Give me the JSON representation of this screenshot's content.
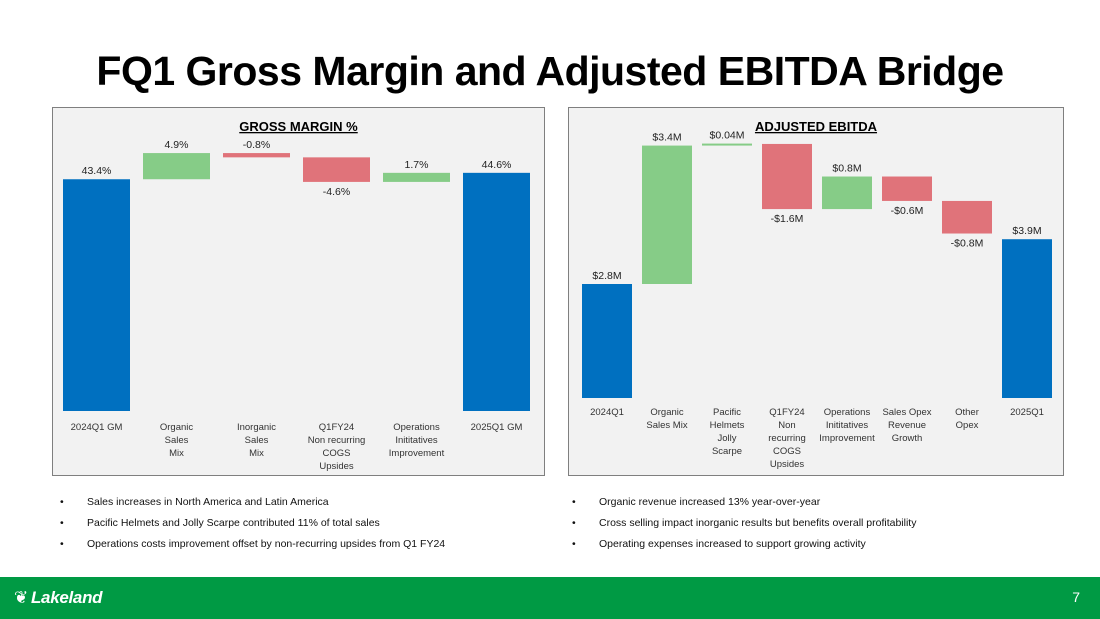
{
  "page_title": "FQ1 Gross Margin and Adjusted EBITDA Bridge",
  "colors": {
    "increase": "#86cc87",
    "decrease": "#e0737a",
    "total": "#0070c0",
    "footer": "#009a44"
  },
  "chart_data": [
    {
      "type": "bar",
      "subtype": "waterfall",
      "title": "GROSS MARGIN %",
      "ylim": [
        0,
        50
      ],
      "categories": [
        "2024Q1 GM",
        "Organic Sales Mix",
        "Inorganic Sales Mix",
        "Q1FY24 Non recurring COGS Upsides",
        "Operations Inititatives Improvement",
        "2025Q1 GM"
      ],
      "category_lines": [
        [
          "2024Q1 GM"
        ],
        [
          "Organic",
          "Sales",
          "Mix"
        ],
        [
          "Inorganic",
          "Sales",
          "Mix"
        ],
        [
          "Q1FY24",
          "Non recurring",
          "COGS",
          "Upsides"
        ],
        [
          "Operations",
          "Inititatives",
          "Improvement"
        ],
        [
          "2025Q1 GM"
        ]
      ],
      "values": [
        43.4,
        4.9,
        -0.8,
        -4.6,
        1.7,
        44.6
      ],
      "kinds": [
        "total",
        "increase",
        "decrease",
        "decrease",
        "increase",
        "total"
      ],
      "data_labels": [
        "43.4%",
        "4.9%",
        "-0.8%",
        "-4.6%",
        "1.7%",
        "44.6%"
      ]
    },
    {
      "type": "bar",
      "subtype": "waterfall",
      "title": "ADJUSTED EBITDA",
      "ylim": [
        0,
        7
      ],
      "categories": [
        "2024Q1",
        "Organic Sales Mix",
        "Pacific Helmets Jolly Scarpe",
        "Q1FY24 Non recurring COGS Upsides",
        "Operations Inititatives Improvement",
        "Sales Opex Revenue Growth",
        "Other Opex",
        "2025Q1"
      ],
      "category_lines": [
        [
          "2024Q1"
        ],
        [
          "Organic",
          "Sales Mix"
        ],
        [
          "Pacific",
          "Helmets",
          "Jolly",
          "Scarpe"
        ],
        [
          "Q1FY24",
          "Non",
          "recurring",
          "COGS",
          "Upsides"
        ],
        [
          "Operations",
          "Inititatives",
          "Improvement"
        ],
        [
          "Sales Opex",
          "Revenue",
          "Growth"
        ],
        [
          "Other",
          "Opex"
        ],
        [
          "2025Q1"
        ]
      ],
      "values": [
        2.8,
        3.4,
        0.04,
        -1.6,
        0.8,
        -0.6,
        -0.8,
        3.9
      ],
      "kinds": [
        "total",
        "increase",
        "increase",
        "decrease",
        "increase",
        "decrease",
        "decrease",
        "total"
      ],
      "data_labels": [
        "$2.8M",
        "$3.4M",
        "$0.04M",
        "-$1.6M",
        "$0.8M",
        "-$0.6M",
        "-$0.8M",
        "$3.9M"
      ]
    }
  ],
  "bullets_left": [
    "Sales increases in North America and Latin America",
    "Pacific Helmets and Jolly Scarpe contributed 11% of total sales",
    "Operations costs improvement offset by non-recurring upsides from Q1 FY24"
  ],
  "bullets_right": [
    "Organic revenue increased 13% year-over-year",
    "Cross selling impact inorganic results but benefits overall profitability",
    "Operating expenses increased to support growing activity"
  ],
  "footer": {
    "logo_text": "Lakeland",
    "page_number": "7"
  }
}
